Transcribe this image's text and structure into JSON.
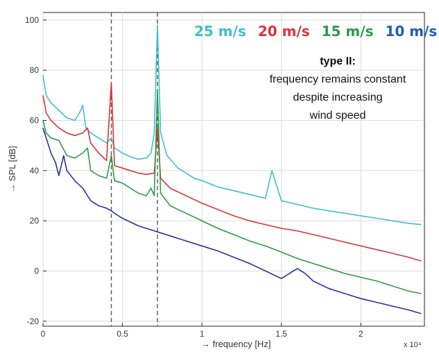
{
  "chart_data": {
    "type": "line",
    "xlabel": "→ frequency [Hz]",
    "ylabel": "→ SPL [dB]",
    "x_exponent_label": "x 10⁴",
    "xlim": [
      0,
      2.4
    ],
    "ylim": [
      -22,
      103
    ],
    "x_ticks": [
      0,
      0.5,
      1,
      1.5,
      2
    ],
    "x_tick_labels": [
      "0",
      "0.5",
      "1",
      "1.5",
      "2"
    ],
    "y_ticks": [
      -20,
      0,
      20,
      40,
      60,
      80,
      100
    ],
    "y_tick_labels": [
      "-20",
      "0",
      "20",
      "40",
      "60",
      "80",
      "100"
    ],
    "grid": true,
    "vlines": [
      0.43,
      0.72
    ],
    "annotation": {
      "title": "type II:",
      "lines": [
        "frequency remains constant",
        "despite increasing",
        "wind speed"
      ]
    },
    "series": [
      {
        "name": "25 m/s",
        "color": "#3fbfcc",
        "x": [
          0,
          0.02,
          0.05,
          0.1,
          0.15,
          0.2,
          0.23,
          0.25,
          0.27,
          0.3,
          0.35,
          0.4,
          0.43,
          0.45,
          0.5,
          0.55,
          0.6,
          0.65,
          0.68,
          0.7,
          0.72,
          0.74,
          0.78,
          0.85,
          0.9,
          0.95,
          1.0,
          1.1,
          1.2,
          1.3,
          1.4,
          1.44,
          1.5,
          1.6,
          1.7,
          1.8,
          1.9,
          2.0,
          2.1,
          2.2,
          2.3,
          2.38
        ],
        "y": [
          78,
          70,
          67,
          64,
          61,
          60,
          63,
          66,
          57,
          55,
          53,
          51,
          53,
          49,
          47,
          45.5,
          44.5,
          45,
          47,
          55,
          98,
          55,
          46,
          41,
          39,
          37,
          36,
          33.5,
          32,
          30.5,
          29,
          40,
          28,
          26.5,
          25,
          24,
          23,
          22,
          21,
          20,
          19,
          18.5
        ]
      },
      {
        "name": "20 m/s",
        "color": "#d9343a",
        "x": [
          0,
          0.02,
          0.05,
          0.1,
          0.15,
          0.2,
          0.25,
          0.28,
          0.3,
          0.35,
          0.4,
          0.43,
          0.45,
          0.5,
          0.55,
          0.6,
          0.65,
          0.7,
          0.72,
          0.74,
          0.8,
          0.9,
          1.0,
          1.1,
          1.2,
          1.3,
          1.4,
          1.5,
          1.6,
          1.7,
          1.8,
          1.9,
          2.0,
          2.1,
          2.2,
          2.3,
          2.38
        ],
        "y": [
          70,
          63,
          60,
          57,
          55,
          54,
          55,
          57,
          51,
          47,
          44,
          75,
          42,
          41,
          40,
          39,
          38.5,
          39,
          57,
          37,
          33,
          30,
          27,
          24.5,
          22,
          20,
          18.5,
          17,
          16,
          14.5,
          13,
          11.5,
          10,
          8.5,
          7,
          5.5,
          4
        ]
      },
      {
        "name": "15 m/s",
        "color": "#2e9a48",
        "x": [
          0,
          0.02,
          0.05,
          0.1,
          0.15,
          0.2,
          0.25,
          0.28,
          0.3,
          0.35,
          0.4,
          0.43,
          0.45,
          0.5,
          0.55,
          0.6,
          0.65,
          0.68,
          0.7,
          0.72,
          0.74,
          0.8,
          0.9,
          1.0,
          1.1,
          1.2,
          1.3,
          1.4,
          1.5,
          1.6,
          1.7,
          1.8,
          1.9,
          2.0,
          2.1,
          2.2,
          2.3,
          2.38
        ],
        "y": [
          60,
          55,
          53,
          52,
          46,
          45,
          47,
          49,
          40,
          38,
          37,
          46,
          36,
          35,
          33,
          31,
          30,
          33,
          30,
          72,
          31,
          26,
          23,
          20,
          17,
          14.5,
          12,
          10,
          7.5,
          5,
          3,
          1,
          -1,
          -2.5,
          -4,
          -6,
          -8,
          -9
        ]
      },
      {
        "name": "10 m/s",
        "color": "#2b2fa3",
        "x": [
          0,
          0.02,
          0.05,
          0.08,
          0.1,
          0.13,
          0.15,
          0.2,
          0.25,
          0.28,
          0.3,
          0.35,
          0.4,
          0.43,
          0.45,
          0.5,
          0.55,
          0.6,
          0.65,
          0.7,
          0.75,
          0.8,
          0.9,
          1.0,
          1.1,
          1.2,
          1.3,
          1.4,
          1.5,
          1.55,
          1.6,
          1.65,
          1.7,
          1.8,
          1.9,
          2.0,
          2.1,
          2.2,
          2.3,
          2.38
        ],
        "y": [
          57,
          53,
          47,
          43,
          38,
          46,
          40,
          36,
          33,
          30,
          28,
          26,
          25,
          24,
          23,
          21,
          19.5,
          18,
          17,
          16,
          15,
          14,
          12,
          10,
          8,
          5.5,
          3,
          0,
          -3,
          -1,
          1,
          -1,
          -4,
          -7,
          -9,
          -11,
          -12.5,
          -14,
          -15.5,
          -17
        ]
      }
    ]
  }
}
